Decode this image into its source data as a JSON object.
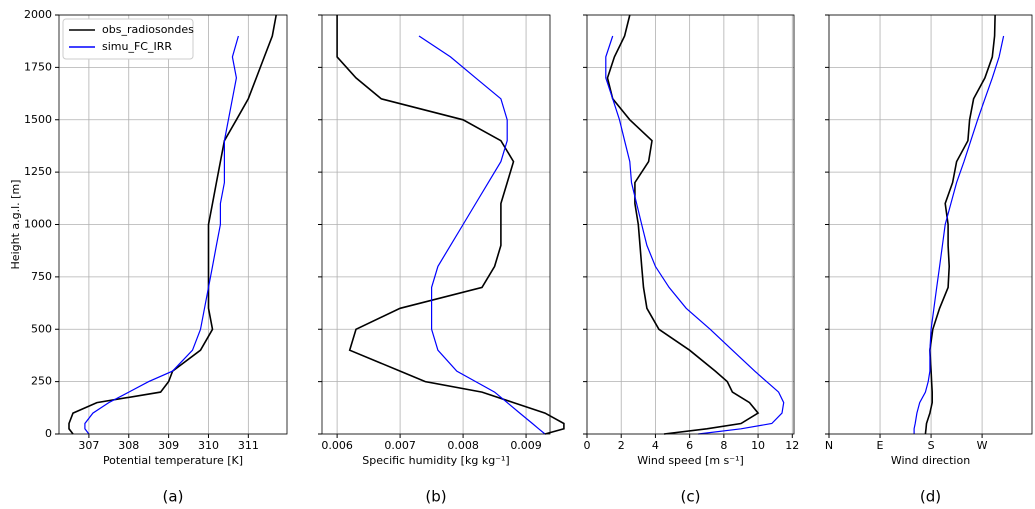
{
  "chart_data": [
    {
      "type": "line",
      "caption": "(a)",
      "x_label": "Potential temperature [K]",
      "y_label": "Height a.g.l. [m]",
      "xlim": [
        306.25,
        311.97
      ],
      "xticks": [
        307,
        308,
        309,
        310,
        311
      ],
      "ylim": [
        0,
        2000
      ],
      "yticks": [
        0,
        250,
        500,
        750,
        1000,
        1250,
        1500,
        1750,
        2000
      ],
      "grid": true,
      "legend": "upper left",
      "y": [
        0,
        25,
        50,
        100,
        150,
        200,
        250,
        300,
        400,
        500,
        600,
        700,
        800,
        900,
        1000,
        1100,
        1200,
        1300,
        1400,
        1500,
        1600,
        1700,
        1800,
        1900,
        2000
      ],
      "series": [
        {
          "name": "obs_radiosondes",
          "color": "#000000",
          "values": [
            306.6,
            306.5,
            306.5,
            306.6,
            307.2,
            308.8,
            309.0,
            309.1,
            309.8,
            310.1,
            310.0,
            310.0,
            310.0,
            310.0,
            310.0,
            310.1,
            310.2,
            310.3,
            310.4,
            310.7,
            311.0,
            311.2,
            311.4,
            311.6,
            311.7
          ]
        },
        {
          "name": "simu_FC_IRR",
          "color": "#0000ff",
          "values": [
            307.0,
            306.9,
            306.9,
            307.1,
            307.5,
            308.0,
            308.5,
            309.1,
            309.6,
            309.8,
            309.9,
            310.0,
            310.1,
            310.2,
            310.3,
            310.3,
            310.4,
            310.4,
            310.4,
            310.5,
            310.6,
            310.7,
            310.6,
            310.75,
            null
          ]
        }
      ]
    },
    {
      "type": "line",
      "caption": "(b)",
      "x_label": "Specific humidity [kg kg⁻¹]",
      "xlim": [
        0.00576,
        0.00938
      ],
      "xticks": [
        0.006,
        0.007,
        0.008,
        0.009
      ],
      "grid": true,
      "y": [
        0,
        25,
        50,
        100,
        150,
        200,
        250,
        300,
        400,
        500,
        600,
        700,
        800,
        900,
        1000,
        1100,
        1200,
        1300,
        1400,
        1500,
        1600,
        1700,
        1800,
        1900,
        2000
      ],
      "series": [
        {
          "name": "obs_radiosondes",
          "color": "#000000",
          "values": [
            0.0093,
            0.0096,
            0.0096,
            0.0093,
            0.0088,
            0.0083,
            0.0074,
            0.007,
            0.0062,
            0.0063,
            0.007,
            0.0083,
            0.0085,
            0.0086,
            0.0086,
            0.0086,
            0.0087,
            0.0088,
            0.0086,
            0.008,
            0.0067,
            0.0063,
            0.006,
            0.006,
            0.006
          ]
        },
        {
          "name": "simu_FC_IRR",
          "color": "#0000ff",
          "values": [
            0.0093,
            0.0092,
            0.0091,
            0.0089,
            0.0087,
            0.0085,
            0.0082,
            0.0079,
            0.0076,
            0.0075,
            0.0075,
            0.0075,
            0.0076,
            0.0078,
            0.008,
            0.0082,
            0.0084,
            0.0086,
            0.0087,
            0.0087,
            0.0086,
            0.0082,
            0.0078,
            0.0073,
            null
          ]
        }
      ]
    },
    {
      "type": "line",
      "caption": "(c)",
      "x_label": "Wind speed [m s⁻¹]",
      "xlim": [
        0,
        12.1
      ],
      "xticks": [
        0,
        2,
        4,
        6,
        8,
        10,
        12
      ],
      "grid": true,
      "y": [
        0,
        25,
        50,
        100,
        150,
        200,
        250,
        300,
        400,
        500,
        600,
        700,
        800,
        900,
        1000,
        1100,
        1200,
        1300,
        1400,
        1500,
        1600,
        1700,
        1800,
        1900,
        2000
      ],
      "series": [
        {
          "name": "obs_radiosondes",
          "color": "#000000",
          "values": [
            4.5,
            7,
            9,
            10.0,
            9.5,
            8.5,
            8.2,
            7.5,
            6.0,
            4.2,
            3.5,
            3.3,
            3.2,
            3.1,
            3.0,
            2.8,
            2.8,
            3.6,
            3.8,
            2.5,
            1.5,
            1.2,
            1.6,
            2.2,
            2.5
          ]
        },
        {
          "name": "simu_FC_IRR",
          "color": "#0000ff",
          "values": [
            6.5,
            9,
            10.8,
            11.4,
            11.5,
            11.2,
            10.5,
            9.8,
            8.5,
            7.2,
            5.8,
            4.8,
            4.0,
            3.5,
            3.2,
            2.9,
            2.6,
            2.5,
            2.2,
            1.9,
            1.5,
            1.1,
            1.1,
            1.5,
            null
          ]
        }
      ]
    },
    {
      "type": "line",
      "caption": "(d)",
      "x_label": "Wind direction",
      "xlim": [
        0,
        358
      ],
      "xticks": [
        {
          "value": 0,
          "label": "N"
        },
        {
          "value": 90,
          "label": "E"
        },
        {
          "value": 180,
          "label": "S"
        },
        {
          "value": 270,
          "label": "W"
        }
      ],
      "grid": true,
      "y": [
        0,
        25,
        50,
        100,
        150,
        200,
        250,
        300,
        400,
        500,
        600,
        700,
        800,
        900,
        1000,
        1100,
        1200,
        1300,
        1400,
        1500,
        1600,
        1700,
        1800,
        1900,
        2000
      ],
      "series": [
        {
          "name": "obs_radiosondes",
          "color": "#000000",
          "values": [
            170,
            171,
            172,
            178,
            182,
            182,
            181,
            180,
            178,
            183,
            195,
            210,
            212,
            210,
            210,
            205,
            218,
            225,
            245,
            248,
            255,
            275,
            288,
            292,
            293
          ]
        },
        {
          "name": "simu_FC_IRR",
          "color": "#0000ff",
          "values": [
            150,
            150,
            152,
            155,
            160,
            170,
            175,
            178,
            178,
            180,
            185,
            190,
            195,
            200,
            205,
            215,
            225,
            238,
            250,
            262,
            275,
            288,
            300,
            308,
            null
          ]
        }
      ]
    }
  ]
}
